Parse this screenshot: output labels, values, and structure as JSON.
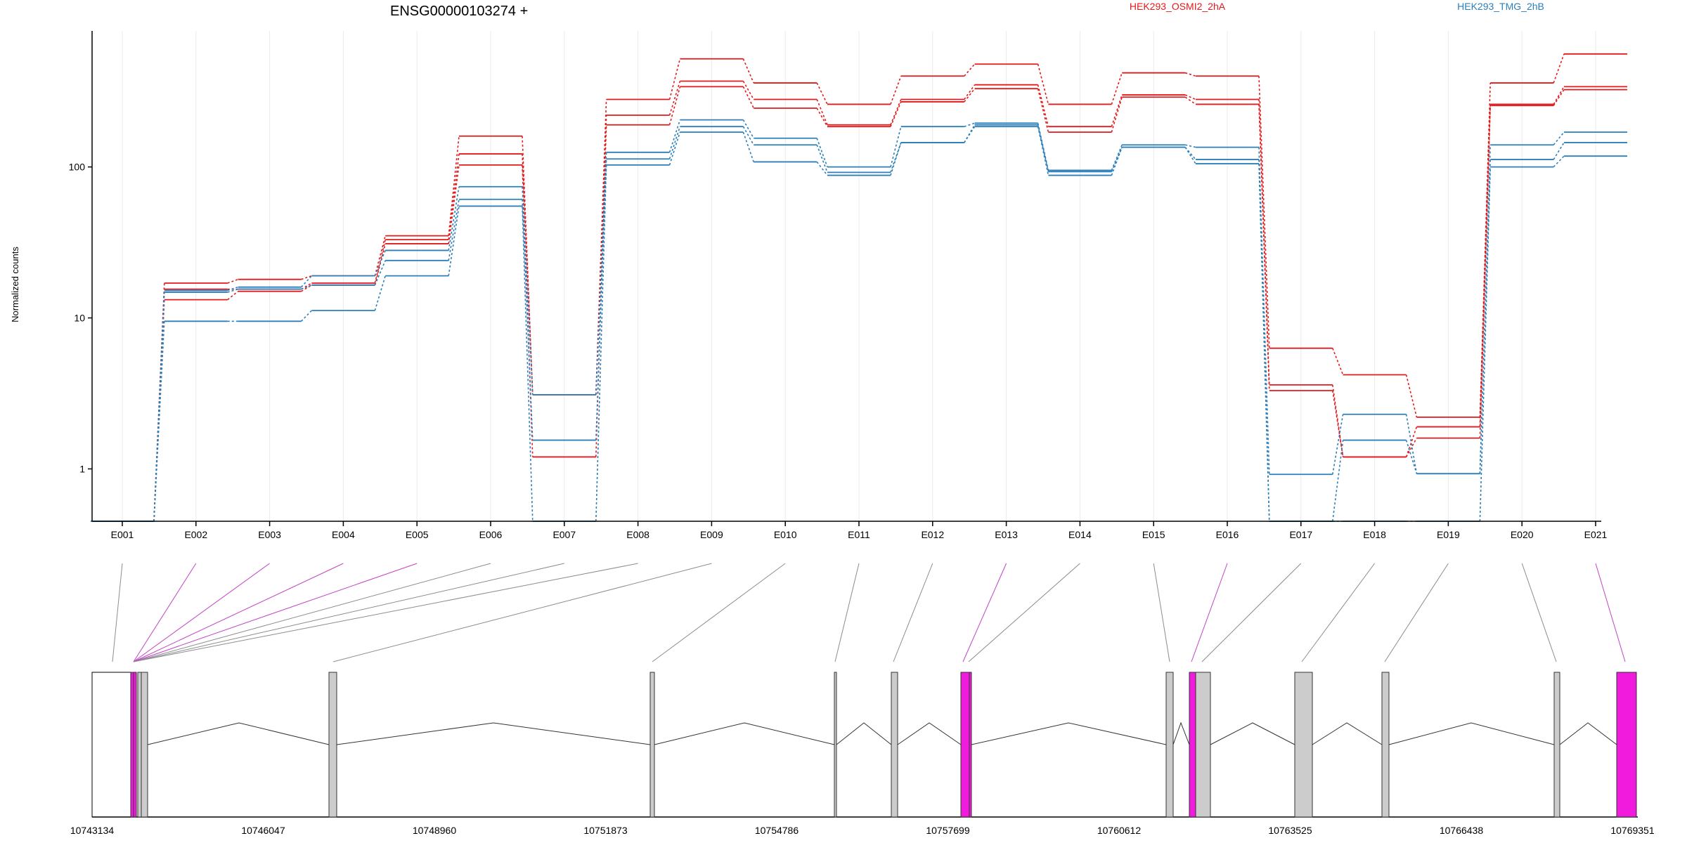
{
  "chart_data": {
    "type": "line",
    "title": "ENSG00000103274 +",
    "ylabel": "Normalized counts",
    "yscale": "log",
    "ylim": [
      0.45,
      700
    ],
    "yticks": [
      1,
      10,
      100
    ],
    "ytick_labels": [
      "1",
      "10",
      "100"
    ],
    "grid": "vertical",
    "legend_position": "top-right",
    "categories": [
      "E001",
      "E002",
      "E003",
      "E004",
      "E005",
      "E006",
      "E007",
      "E008",
      "E009",
      "E010",
      "E011",
      "E012",
      "E013",
      "E014",
      "E015",
      "E016",
      "E017",
      "E018",
      "E019",
      "E020",
      "E021"
    ],
    "groups": [
      {
        "name": "HEK293_OSMI2_2hA",
        "color": "#e31a1c"
      },
      {
        "name": "HEK293_TMG_2hB",
        "color": "#2c7fb8"
      }
    ],
    "series": [
      {
        "group": "HEK293_OSMI2_2hA",
        "color": "#e31a1c",
        "values": [
          0.45,
          17,
          18,
          19,
          35,
          160,
          3.1,
          280,
          520,
          360,
          260,
          400,
          480,
          260,
          420,
          400,
          6.3,
          4.2,
          2.2,
          360,
          560
        ]
      },
      {
        "group": "HEK293_OSMI2_2hA",
        "color": "#e31a1c",
        "values": [
          0.45,
          15.5,
          15.5,
          17,
          33,
          122,
          3.1,
          220,
          370,
          280,
          190,
          280,
          350,
          185,
          300,
          280,
          3.6,
          1.2,
          1.9,
          260,
          340
        ]
      },
      {
        "group": "HEK293_OSMI2_2hA",
        "color": "#e31a1c",
        "values": [
          0.45,
          13.2,
          15,
          16.5,
          31,
          103,
          1.2,
          190,
          340,
          245,
          185,
          270,
          330,
          170,
          290,
          260,
          3.3,
          1.2,
          1.6,
          255,
          325
        ]
      },
      {
        "group": "HEK293_TMG_2hB",
        "color": "#2c7fb8",
        "values": [
          0.45,
          15.2,
          16,
          19,
          28,
          74,
          3.1,
          125,
          205,
          155,
          100,
          185,
          195,
          95,
          140,
          135,
          0.92,
          2.3,
          0.93,
          140,
          170
        ]
      },
      {
        "group": "HEK293_TMG_2hB",
        "color": "#2c7fb8",
        "values": [
          0.45,
          14.8,
          15.5,
          16.5,
          24,
          61,
          1.55,
          113,
          185,
          140,
          92,
          145,
          190,
          93,
          135,
          112,
          0.45,
          1.55,
          0.93,
          112,
          145
        ]
      },
      {
        "group": "HEK293_TMG_2hB",
        "color": "#2c7fb8",
        "values": [
          0.45,
          9.5,
          9.5,
          11.2,
          19,
          55,
          0.45,
          103,
          170,
          108,
          88,
          145,
          185,
          88,
          135,
          105,
          0.45,
          0.45,
          0.45,
          100,
          118
        ]
      }
    ],
    "genome": {
      "coordinate_labels": [
        "10743134",
        "10746047",
        "10748960",
        "10751873",
        "10754786",
        "10757699",
        "10760612",
        "10763525",
        "10766438",
        "10769351"
      ],
      "exon_colors": {
        "default": "#cccccc",
        "significant": "#f01bdd"
      }
    }
  }
}
